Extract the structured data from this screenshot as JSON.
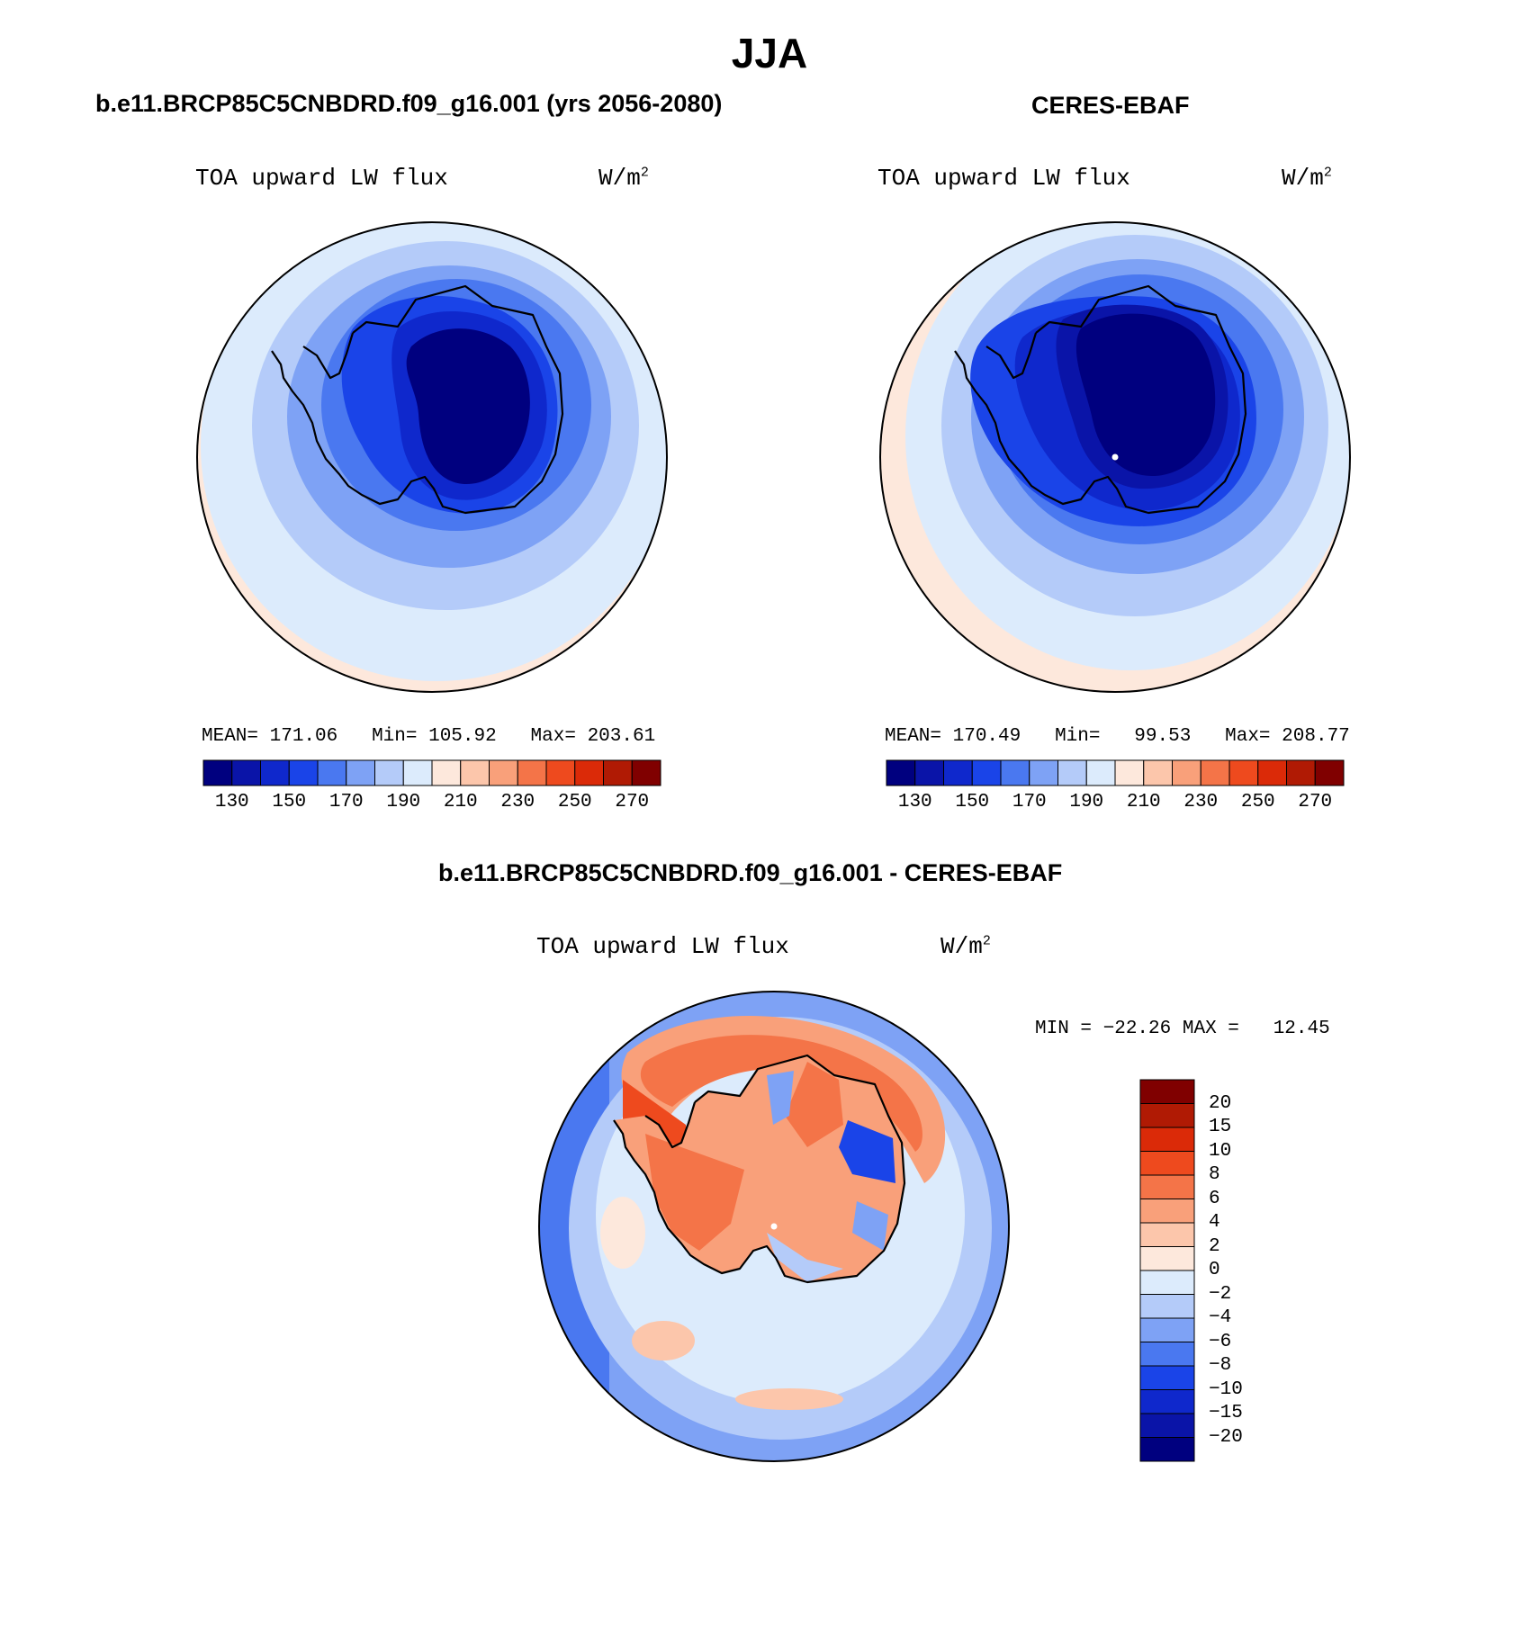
{
  "page_title": "JJA",
  "panels": {
    "model": {
      "header": "b.e11.BRCP85C5CNBDRD.f09_g16.001 (yrs 2056-2080)",
      "variable": "TOA upward LW flux",
      "units_base": "W/m",
      "units_exp": "2",
      "stats": {
        "mean_label": "MEAN=",
        "mean": "171.06",
        "min_label": "Min=",
        "min": "105.92",
        "max_label": "Max=",
        "max": "203.61"
      }
    },
    "obs": {
      "header": "CERES-EBAF",
      "variable": "TOA upward LW flux",
      "units_base": "W/m",
      "units_exp": "2",
      "stats": {
        "mean_label": "MEAN=",
        "mean": "170.49",
        "min_label": "Min=",
        "min": "99.53",
        "max_label": "Max=",
        "max": "208.77"
      }
    },
    "diff": {
      "header": "b.e11.BRCP85C5CNBDRD.f09_g16.001 - CERES-EBAF",
      "variable": "TOA upward LW flux",
      "units_base": "W/m",
      "units_exp": "2",
      "stats": {
        "min_label": "MIN =",
        "min": "−22.26",
        "max_label": "MAX =",
        "max": "12.45"
      }
    }
  },
  "colorbars": {
    "abs_ticks": [
      "130",
      "150",
      "170",
      "190",
      "210",
      "230",
      "250",
      "270"
    ],
    "abs_colors": [
      "#00007f",
      "#0a14a8",
      "#0f28cc",
      "#1a44e8",
      "#4a78f0",
      "#7ea2f5",
      "#b4cbf9",
      "#dcebfc",
      "#fde8dc",
      "#fcc6ab",
      "#f9a07a",
      "#f47448",
      "#ee4a1e",
      "#db2a08",
      "#b01a04",
      "#800000"
    ],
    "diff_ticks": [
      "20",
      "15",
      "10",
      "8",
      "6",
      "4",
      "2",
      "0",
      "−2",
      "−4",
      "−6",
      "−8",
      "−10",
      "−15",
      "−20"
    ],
    "diff_colors": [
      "#800000",
      "#b01a04",
      "#db2a08",
      "#ee4a1e",
      "#f47448",
      "#f9a07a",
      "#fcc6ab",
      "#fde8dc",
      "#dcebfc",
      "#b4cbf9",
      "#7ea2f5",
      "#4a78f0",
      "#1a44e8",
      "#0f28cc",
      "#0a14a8",
      "#00007f"
    ]
  },
  "chart_data": [
    {
      "type": "polar-stereographic-contour",
      "title": "b.e11.BRCP85C5CNBDRD.f09_g16.001 (yrs 2056-2080)",
      "variable": "TOA upward LW flux",
      "units": "W/m2",
      "mean": 171.06,
      "min": 105.92,
      "max": 203.61,
      "contour_ticks": [
        130,
        150,
        170,
        190,
        210,
        230,
        250,
        270
      ]
    },
    {
      "type": "polar-stereographic-contour",
      "title": "CERES-EBAF",
      "variable": "TOA upward LW flux",
      "units": "W/m2",
      "mean": 170.49,
      "min": 99.53,
      "max": 208.77,
      "contour_ticks": [
        130,
        150,
        170,
        190,
        210,
        230,
        250,
        270
      ]
    },
    {
      "type": "polar-stereographic-contour",
      "title": "b.e11.BRCP85C5CNBDRD.f09_g16.001 - CERES-EBAF",
      "variable": "TOA upward LW flux",
      "units": "W/m2",
      "min": -22.26,
      "max": 12.45,
      "contour_ticks": [
        -20,
        -15,
        -10,
        -8,
        -6,
        -4,
        -2,
        0,
        2,
        4,
        6,
        8,
        10,
        15,
        20
      ]
    }
  ]
}
